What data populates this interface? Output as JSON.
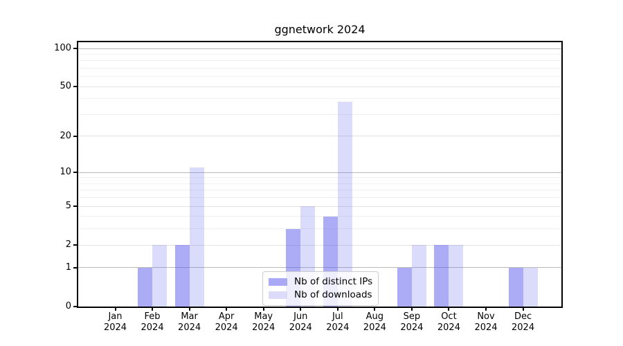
{
  "title": "ggnetwork 2024",
  "chart_data": {
    "type": "bar",
    "title": "ggnetwork 2024",
    "categories": [
      "Jan 2024",
      "Feb 2024",
      "Mar 2024",
      "Apr 2024",
      "May 2024",
      "Jun 2024",
      "Jul 2024",
      "Aug 2024",
      "Sep 2024",
      "Oct 2024",
      "Nov 2024",
      "Dec 2024"
    ],
    "series": [
      {
        "name": "Nb of distinct IPs",
        "values": [
          0,
          1,
          2,
          0,
          0,
          3,
          4,
          0,
          1,
          2,
          0,
          1
        ],
        "bar_color": "rgba(90,90,238,0.50)",
        "swatch_color": "#a9a9f6"
      },
      {
        "name": "Nb of downloads",
        "values": [
          0,
          2,
          11,
          0,
          0,
          5,
          38,
          0,
          2,
          2,
          0,
          1
        ],
        "bar_color": "rgba(90,90,238,0.22)",
        "swatch_color": "#dcdcfa"
      }
    ],
    "xlabel": "",
    "ylabel": "",
    "yscale": "log1p",
    "yticks": [
      0,
      1,
      2,
      5,
      10,
      20,
      50,
      100
    ],
    "ylim": [
      0,
      112
    ],
    "grid": true,
    "grid_lines": {
      "major": [
        1,
        10,
        100
      ],
      "mid": [
        2,
        5,
        20,
        50
      ],
      "minor": [
        3,
        4,
        6,
        7,
        8,
        9,
        30,
        40,
        60,
        70,
        80,
        90
      ]
    },
    "grid_colors": {
      "major": "#b9b9b9",
      "mid": "#e2e2e2",
      "minor": "#f0f0f0"
    },
    "legend_position": "lower center"
  }
}
